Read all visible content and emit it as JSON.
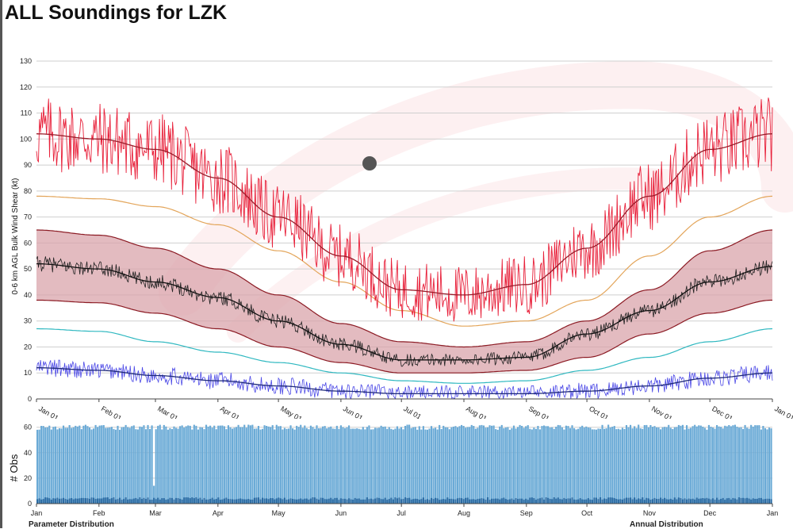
{
  "title": "ALL Soundings for LZK",
  "main_chart": {
    "y_label": "0-6 km AGL Bulk Wind Shear (kt)",
    "y_ticks": [
      "0",
      "10",
      "20",
      "30",
      "40",
      "50",
      "60",
      "70",
      "80",
      "90",
      "100",
      "110",
      "120",
      "130"
    ],
    "x_ticks": [
      "Jan 01",
      "Feb 01",
      "Mar 01",
      "Apr 01",
      "May 01",
      "Jun 01",
      "Jul 01",
      "Aug 01",
      "Sep 01",
      "Oct 01",
      "Nov 01",
      "Dec 01",
      "Jan 01"
    ]
  },
  "obs_chart": {
    "y_label": "# Obs",
    "y_ticks": [
      "0",
      "20",
      "40",
      "60"
    ],
    "x_ticks": [
      "Jan",
      "Feb",
      "Mar",
      "Apr",
      "May",
      "Jun",
      "Jul",
      "Aug",
      "Sep",
      "Oct",
      "Nov",
      "Dec",
      "Jan"
    ]
  },
  "footer": {
    "left": "Parameter Distribution",
    "right": "Annual Distribution"
  },
  "colors": {
    "max": "#e8203a",
    "max_smooth": "#9b1c2a",
    "p90": "#e3a55a",
    "band_fill": "#d9a4ab",
    "band_edge": "#8b1a23",
    "mean": "#222222",
    "p10": "#2fb8c0",
    "min": "#4a47e6",
    "min_smooth": "#1f2a7a",
    "bars": "#6aaad6",
    "bars_low": "#2c6da5",
    "grid": "#cfcfcf",
    "marker": "#555555"
  },
  "chart_data": [
    {
      "type": "line",
      "title": "",
      "xlabel": "",
      "ylabel": "0-6 km AGL Bulk Wind Shear (kt)",
      "xlim": [
        1,
        366
      ],
      "ylim": [
        0,
        137
      ],
      "x_ticks": [
        "Jan 01",
        "Feb 01",
        "Mar 01",
        "Apr 01",
        "May 01",
        "Jun 01",
        "Jul 01",
        "Aug 01",
        "Sep 01",
        "Oct 01",
        "Nov 01",
        "Dec 01",
        "Jan 01"
      ],
      "x": [
        1,
        32,
        60,
        91,
        121,
        152,
        182,
        213,
        244,
        274,
        305,
        335,
        366
      ],
      "series": [
        {
          "values": [
            102,
            100,
            96,
            85,
            70,
            55,
            42,
            40,
            44,
            58,
            78,
            96,
            102
          ]
        },
        {
          "values": [
            78,
            77,
            74,
            67,
            57,
            45,
            34,
            28,
            30,
            38,
            55,
            70,
            78
          ]
        },
        {
          "values": [
            65,
            63,
            58,
            50,
            40,
            29,
            22,
            20,
            22,
            30,
            42,
            57,
            65
          ]
        },
        {
          "values": [
            52,
            50,
            45,
            39,
            30,
            21,
            15,
            15,
            16,
            25,
            34,
            45,
            51
          ]
        },
        {
          "values": [
            38,
            37,
            33,
            27,
            20,
            14,
            10,
            10,
            11,
            16,
            25,
            33,
            38
          ]
        },
        {
          "values": [
            27,
            26,
            22,
            18,
            14,
            10,
            7,
            6,
            7,
            11,
            16,
            22,
            27
          ]
        },
        {
          "values": [
            12,
            11,
            9,
            7,
            5,
            3,
            2,
            2,
            2,
            3,
            5,
            8,
            10
          ]
        }
      ]
    },
    {
      "type": "bar",
      "title": "",
      "xlabel": "",
      "ylabel": "# Obs",
      "ylim": [
        0,
        65
      ],
      "x_ticks": [
        "Jan",
        "Feb",
        "Mar",
        "Apr",
        "May",
        "Jun",
        "Jul",
        "Aug",
        "Sep",
        "Oct",
        "Nov",
        "Dec",
        "Jan"
      ],
      "typical_count": 60,
      "anomaly": {
        "day": 59,
        "value": 14
      }
    }
  ]
}
